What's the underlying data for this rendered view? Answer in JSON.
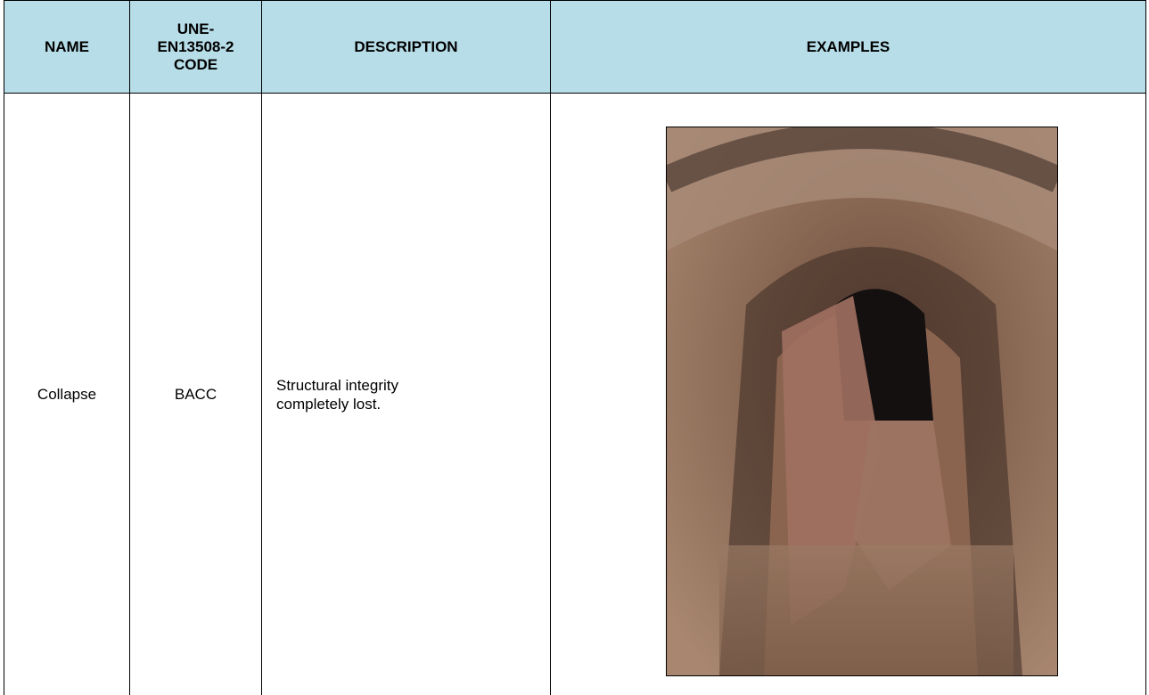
{
  "table": {
    "header": [
      "NAME",
      "UNE-\nEN13508-2\nCODE",
      "DESCRIPTION",
      "EXAMPLES"
    ],
    "rows": [
      [
        "Collapse",
        "BACC",
        "Structural integrity\ncompletely lost."
      ]
    ]
  }
}
